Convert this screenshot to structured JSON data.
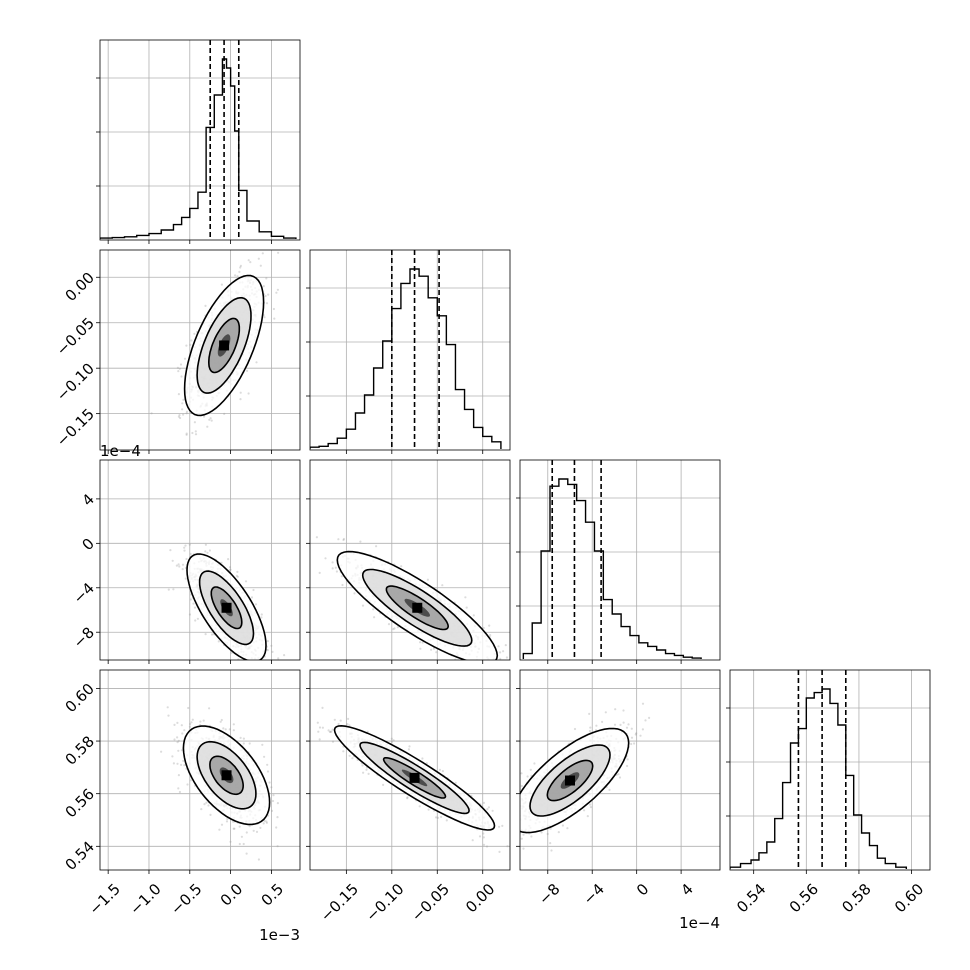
{
  "chart_data": {
    "type": "corner",
    "parameters": [
      {
        "index": 0,
        "range": [
          -1.6,
          0.85
        ],
        "ticks": [
          -1.5,
          -1.0,
          -0.5,
          0.0,
          0.5
        ],
        "tick_labels": [
          "−1.5",
          "−1.0",
          "−0.5",
          "0.0",
          "0.5"
        ],
        "scale_label": "1e−3"
      },
      {
        "index": 1,
        "range": [
          -0.19,
          0.03
        ],
        "ticks": [
          -0.15,
          -0.1,
          -0.05,
          0.0
        ],
        "tick_labels": [
          "−0.15",
          "−0.10",
          "−0.05",
          "0.00"
        ],
        "scale_label": ""
      },
      {
        "index": 2,
        "range": [
          -10.5,
          7.5
        ],
        "ticks": [
          -8,
          -4,
          0,
          4
        ],
        "tick_labels": [
          "−8",
          "−4",
          "0",
          "4"
        ],
        "scale_label": "1e−4"
      },
      {
        "index": 3,
        "range": [
          0.531,
          0.607
        ],
        "ticks": [
          0.54,
          0.56,
          0.58,
          0.6
        ],
        "tick_labels": [
          "0.54",
          "0.56",
          "0.58",
          "0.60"
        ],
        "scale_label": ""
      }
    ],
    "histograms": [
      {
        "param": 0,
        "quantiles": [
          -0.25,
          -0.08,
          0.1
        ],
        "peak": 1.0,
        "bins_edges": [
          -1.6,
          -1.45,
          -1.3,
          -1.15,
          -1.0,
          -0.85,
          -0.7,
          -0.6,
          -0.5,
          -0.4,
          -0.3,
          -0.2,
          -0.1,
          -0.05,
          0.0,
          0.05,
          0.1,
          0.2,
          0.35,
          0.5,
          0.65,
          0.8
        ],
        "counts": [
          0.005,
          0.008,
          0.012,
          0.02,
          0.03,
          0.05,
          0.08,
          0.12,
          0.17,
          0.26,
          0.62,
          0.8,
          1.0,
          0.95,
          0.85,
          0.6,
          0.27,
          0.1,
          0.04,
          0.015,
          0.005
        ]
      },
      {
        "param": 1,
        "quantiles": [
          -0.1,
          -0.075,
          -0.048
        ],
        "peak": 1.0,
        "bins_edges": [
          -0.19,
          -0.18,
          -0.17,
          -0.16,
          -0.15,
          -0.14,
          -0.13,
          -0.12,
          -0.11,
          -0.1,
          -0.09,
          -0.08,
          -0.07,
          -0.06,
          -0.05,
          -0.04,
          -0.03,
          -0.02,
          -0.01,
          0.0,
          0.01,
          0.02
        ],
        "counts": [
          0.01,
          0.015,
          0.03,
          0.06,
          0.11,
          0.2,
          0.3,
          0.45,
          0.6,
          0.78,
          0.92,
          1.0,
          0.96,
          0.84,
          0.74,
          0.58,
          0.33,
          0.22,
          0.12,
          0.07,
          0.04
        ]
      },
      {
        "param": 2,
        "quantiles": [
          -7.6,
          -5.6,
          -3.2
        ],
        "peak": 1.0,
        "bins_edges": [
          -10.2,
          -9.4,
          -8.6,
          -7.8,
          -7.0,
          -6.2,
          -5.4,
          -4.6,
          -3.8,
          -3.0,
          -2.2,
          -1.4,
          -0.6,
          0.2,
          1.0,
          1.8,
          2.6,
          3.4,
          4.2,
          5.0,
          5.8
        ],
        "counts": [
          0.03,
          0.2,
          0.6,
          0.96,
          1.0,
          0.97,
          0.88,
          0.76,
          0.6,
          0.33,
          0.25,
          0.18,
          0.13,
          0.09,
          0.07,
          0.05,
          0.03,
          0.02,
          0.01,
          0.005
        ]
      },
      {
        "param": 3,
        "quantiles": [
          0.557,
          0.566,
          0.575
        ],
        "peak": 1.0,
        "bins_edges": [
          0.531,
          0.535,
          0.539,
          0.542,
          0.545,
          0.548,
          0.551,
          0.554,
          0.557,
          0.56,
          0.563,
          0.566,
          0.569,
          0.572,
          0.575,
          0.578,
          0.581,
          0.584,
          0.587,
          0.59,
          0.594,
          0.598
        ],
        "counts": [
          0.01,
          0.03,
          0.05,
          0.09,
          0.15,
          0.28,
          0.48,
          0.7,
          0.78,
          0.95,
          0.98,
          1.0,
          0.92,
          0.8,
          0.52,
          0.3,
          0.2,
          0.13,
          0.06,
          0.03,
          0.01
        ]
      }
    ],
    "pairs": [
      {
        "x": 0,
        "y": 1,
        "center": [
          -0.08,
          -0.075
        ],
        "sx": 0.22,
        "sy": 0.035,
        "rho": 0.62
      },
      {
        "x": 0,
        "y": 2,
        "center": [
          -0.05,
          -5.8
        ],
        "sx": 0.22,
        "sy": 2.2,
        "rho": -0.7
      },
      {
        "x": 1,
        "y": 2,
        "center": [
          -0.072,
          -5.8
        ],
        "sx": 0.04,
        "sy": 2.3,
        "rho": -0.85
      },
      {
        "x": 0,
        "y": 3,
        "center": [
          -0.05,
          0.567
        ],
        "sx": 0.24,
        "sy": 0.0085,
        "rho": -0.55
      },
      {
        "x": 1,
        "y": 3,
        "center": [
          -0.075,
          0.566
        ],
        "sx": 0.04,
        "sy": 0.009,
        "rho": -0.92
      },
      {
        "x": 2,
        "y": 3,
        "center": [
          -6.0,
          0.565
        ],
        "sx": 2.4,
        "sy": 0.009,
        "rho": 0.72
      }
    ]
  }
}
